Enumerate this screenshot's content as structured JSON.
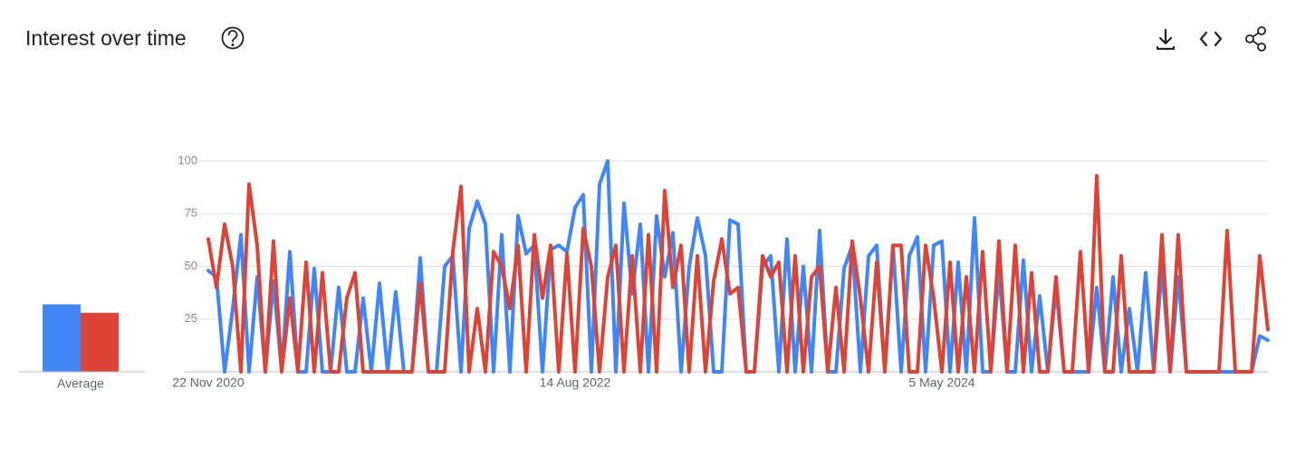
{
  "chart_data": {
    "type": "line",
    "title": "Interest over time",
    "average_label": "Average",
    "average_values": [
      32,
      28
    ],
    "categories": [
      "22 Nov 2020",
      null,
      null,
      null,
      null,
      null,
      null,
      null,
      null,
      null,
      null,
      null,
      null,
      null,
      null,
      null,
      null,
      null,
      null,
      null,
      null,
      null,
      null,
      null,
      null,
      null,
      null,
      null,
      null,
      null,
      null,
      null,
      null,
      null,
      null,
      null,
      null,
      null,
      null,
      null,
      null,
      null,
      null,
      null,
      null,
      "14 Aug 2022",
      null,
      null,
      null,
      null,
      null,
      null,
      null,
      null,
      null,
      null,
      null,
      null,
      null,
      null,
      null,
      null,
      null,
      null,
      null,
      null,
      null,
      null,
      null,
      null,
      null,
      null,
      null,
      null,
      null,
      null,
      null,
      null,
      null,
      null,
      null,
      null,
      null,
      null,
      null,
      null,
      null,
      null,
      null,
      null,
      "5 May 2024",
      null,
      null,
      null,
      null,
      null,
      null,
      null,
      null,
      null,
      null,
      null,
      null,
      null,
      null,
      null,
      null,
      null,
      null,
      null,
      null,
      null,
      null,
      null,
      null,
      null,
      null,
      null,
      null,
      null,
      null,
      null,
      null,
      null,
      null,
      null,
      null,
      null,
      null,
      null,
      null
    ],
    "series": [
      {
        "color": "#4285f4",
        "values": [
          48,
          45,
          0,
          30,
          65,
          0,
          45,
          0,
          43,
          0,
          57,
          0,
          0,
          49,
          0,
          0,
          40,
          0,
          0,
          35,
          0,
          42,
          0,
          38,
          0,
          0,
          54,
          0,
          0,
          50,
          55,
          0,
          68,
          81,
          70,
          0,
          65,
          0,
          74,
          56,
          60,
          0,
          58,
          60,
          57,
          78,
          84,
          0,
          89,
          100,
          0,
          80,
          37,
          70,
          0,
          74,
          45,
          66,
          0,
          50,
          73,
          55,
          0,
          0,
          72,
          70,
          0,
          0,
          50,
          55,
          0,
          63,
          0,
          50,
          0,
          67,
          0,
          0,
          49,
          60,
          0,
          55,
          60,
          0,
          60,
          0,
          55,
          64,
          0,
          60,
          62,
          0,
          52,
          0,
          73,
          0,
          0,
          48,
          0,
          0,
          53,
          0,
          36,
          0,
          40,
          0,
          0,
          0,
          0,
          40,
          0,
          45,
          0,
          30,
          0,
          47,
          0,
          50,
          0,
          45,
          0,
          0,
          0,
          0,
          0,
          0,
          0,
          0,
          0,
          17,
          15
        ]
      },
      {
        "color": "#db4437",
        "values": [
          63,
          40,
          70,
          50,
          0,
          89,
          60,
          0,
          62,
          0,
          35,
          0,
          52,
          0,
          47,
          0,
          0,
          35,
          47,
          0,
          0,
          0,
          0,
          0,
          0,
          0,
          42,
          0,
          0,
          0,
          57,
          88,
          0,
          30,
          0,
          57,
          50,
          30,
          60,
          0,
          65,
          35,
          60,
          0,
          56,
          0,
          68,
          50,
          0,
          45,
          60,
          0,
          55,
          0,
          65,
          0,
          86,
          40,
          60,
          0,
          55,
          0,
          43,
          63,
          37,
          40,
          0,
          0,
          55,
          45,
          52,
          0,
          55,
          0,
          45,
          50,
          0,
          40,
          0,
          62,
          35,
          0,
          52,
          0,
          60,
          60,
          0,
          0,
          60,
          35,
          0,
          52,
          0,
          45,
          0,
          57,
          0,
          62,
          0,
          60,
          0,
          47,
          0,
          0,
          45,
          0,
          0,
          57,
          0,
          93,
          0,
          0,
          55,
          0,
          0,
          0,
          0,
          65,
          0,
          65,
          0,
          0,
          0,
          0,
          0,
          67,
          0,
          0,
          0,
          55,
          20
        ]
      }
    ],
    "ylim": [
      0,
      100
    ],
    "yticks": [
      25,
      50,
      75,
      100
    ],
    "grid": true
  }
}
